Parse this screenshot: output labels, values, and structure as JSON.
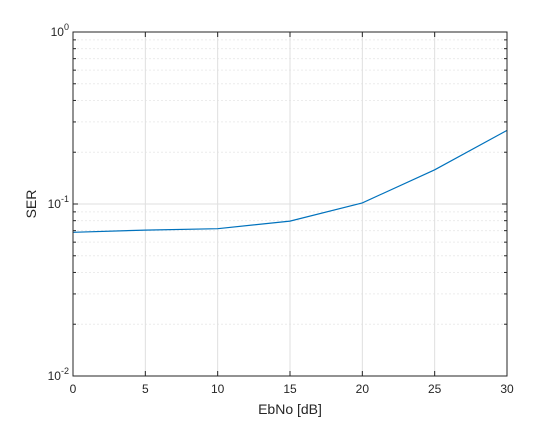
{
  "chart_data": {
    "type": "line",
    "title": "",
    "xlabel": "EbNo [dB]",
    "ylabel": "SER",
    "yscale": "log",
    "xlim": [
      0,
      30
    ],
    "ylim": [
      0.01,
      1
    ],
    "grid": true,
    "legend": "none",
    "x_ticks": [
      0,
      5,
      10,
      15,
      20,
      25,
      30
    ],
    "x_tick_labels": [
      "0",
      "5",
      "10",
      "15",
      "20",
      "25",
      "30"
    ],
    "y_ticks": [
      0.01,
      0.1,
      1
    ],
    "y_tick_labels": [
      {
        "base": "10",
        "exp": "-2"
      },
      {
        "base": "10",
        "exp": "-1"
      },
      {
        "base": "10",
        "exp": "0"
      }
    ],
    "series": [
      {
        "x": [
          0,
          5,
          10,
          15,
          20,
          25,
          30
        ],
        "y": [
          0.0685,
          0.0705,
          0.0718,
          0.0795,
          0.1015,
          0.158,
          0.268
        ],
        "color": "#0072BD"
      }
    ],
    "colors": {
      "axis": "#262626",
      "grid": "#dfdfdf",
      "minor_grid": "#ececec",
      "background": "#ffffff"
    }
  }
}
